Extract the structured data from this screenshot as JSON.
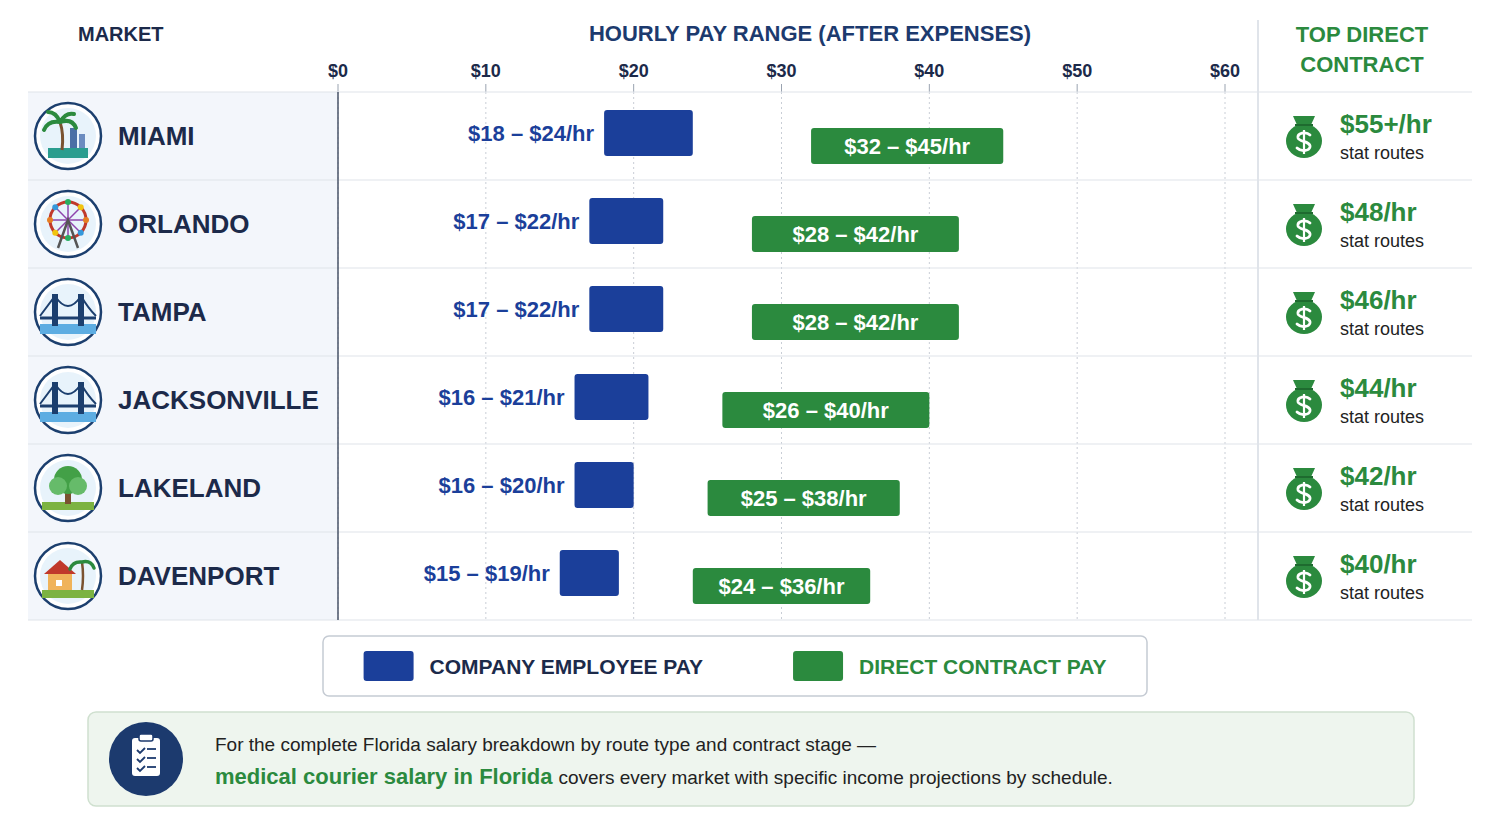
{
  "chart_data": {
    "type": "bar",
    "orientation": "horizontal",
    "title": "HOURLY PAY RANGE (AFTER EXPENSES)",
    "category_header": "MARKET",
    "categories": [
      "MIAMI",
      "ORLANDO",
      "TAMPA",
      "JACKSONVILLE",
      "LAKELAND",
      "DAVENPORT"
    ],
    "series": [
      {
        "name": "COMPANY EMPLOYEE PAY",
        "color": "#1b3f9a",
        "low": [
          18,
          17,
          17,
          16,
          16,
          15
        ],
        "high": [
          24,
          22,
          22,
          21,
          20,
          19
        ],
        "value_labels": [
          "$18 – $24/hr",
          "$17 – $22/hr",
          "$17 – $22/hr",
          "$16 – $21/hr",
          "$16 – $20/hr",
          "$15 – $19/hr"
        ]
      },
      {
        "name": "DIRECT CONTRACT PAY",
        "color": "#2b8a3e",
        "low": [
          32,
          28,
          28,
          26,
          25,
          24
        ],
        "high": [
          45,
          42,
          42,
          40,
          38,
          36
        ],
        "value_labels": [
          "$32 – $45/hr",
          "$28 – $42/hr",
          "$28 – $42/hr",
          "$26 – $40/hr",
          "$25 – $38/hr",
          "$24 – $36/hr"
        ]
      }
    ],
    "xlim": [
      0,
      60
    ],
    "xticks": [
      {
        "value": 0,
        "label": "$0"
      },
      {
        "value": 10,
        "label": "$10"
      },
      {
        "value": 20,
        "label": "$20"
      },
      {
        "value": 30,
        "label": "$30"
      },
      {
        "value": 40,
        "label": "$40"
      },
      {
        "value": 50,
        "label": "$50"
      },
      {
        "value": 60,
        "label": "$60"
      }
    ],
    "grid": true,
    "legend": "bottom",
    "data_labels": true,
    "top_contract": {
      "title": "TOP DIRECT CONTRACT",
      "labels": [
        "$55+/hr",
        "$48/hr",
        "$46/hr",
        "$44/hr",
        "$42/hr",
        "$40/hr"
      ],
      "notes": [
        "stat routes",
        "stat routes",
        "stat routes",
        "stat routes",
        "stat routes",
        "stat routes"
      ]
    },
    "footnote": [
      "For the complete Florida salary breakdown by route type and contract stage —",
      "medical courier salary in Florida",
      "covers every market with specific income projections by schedule."
    ]
  }
}
